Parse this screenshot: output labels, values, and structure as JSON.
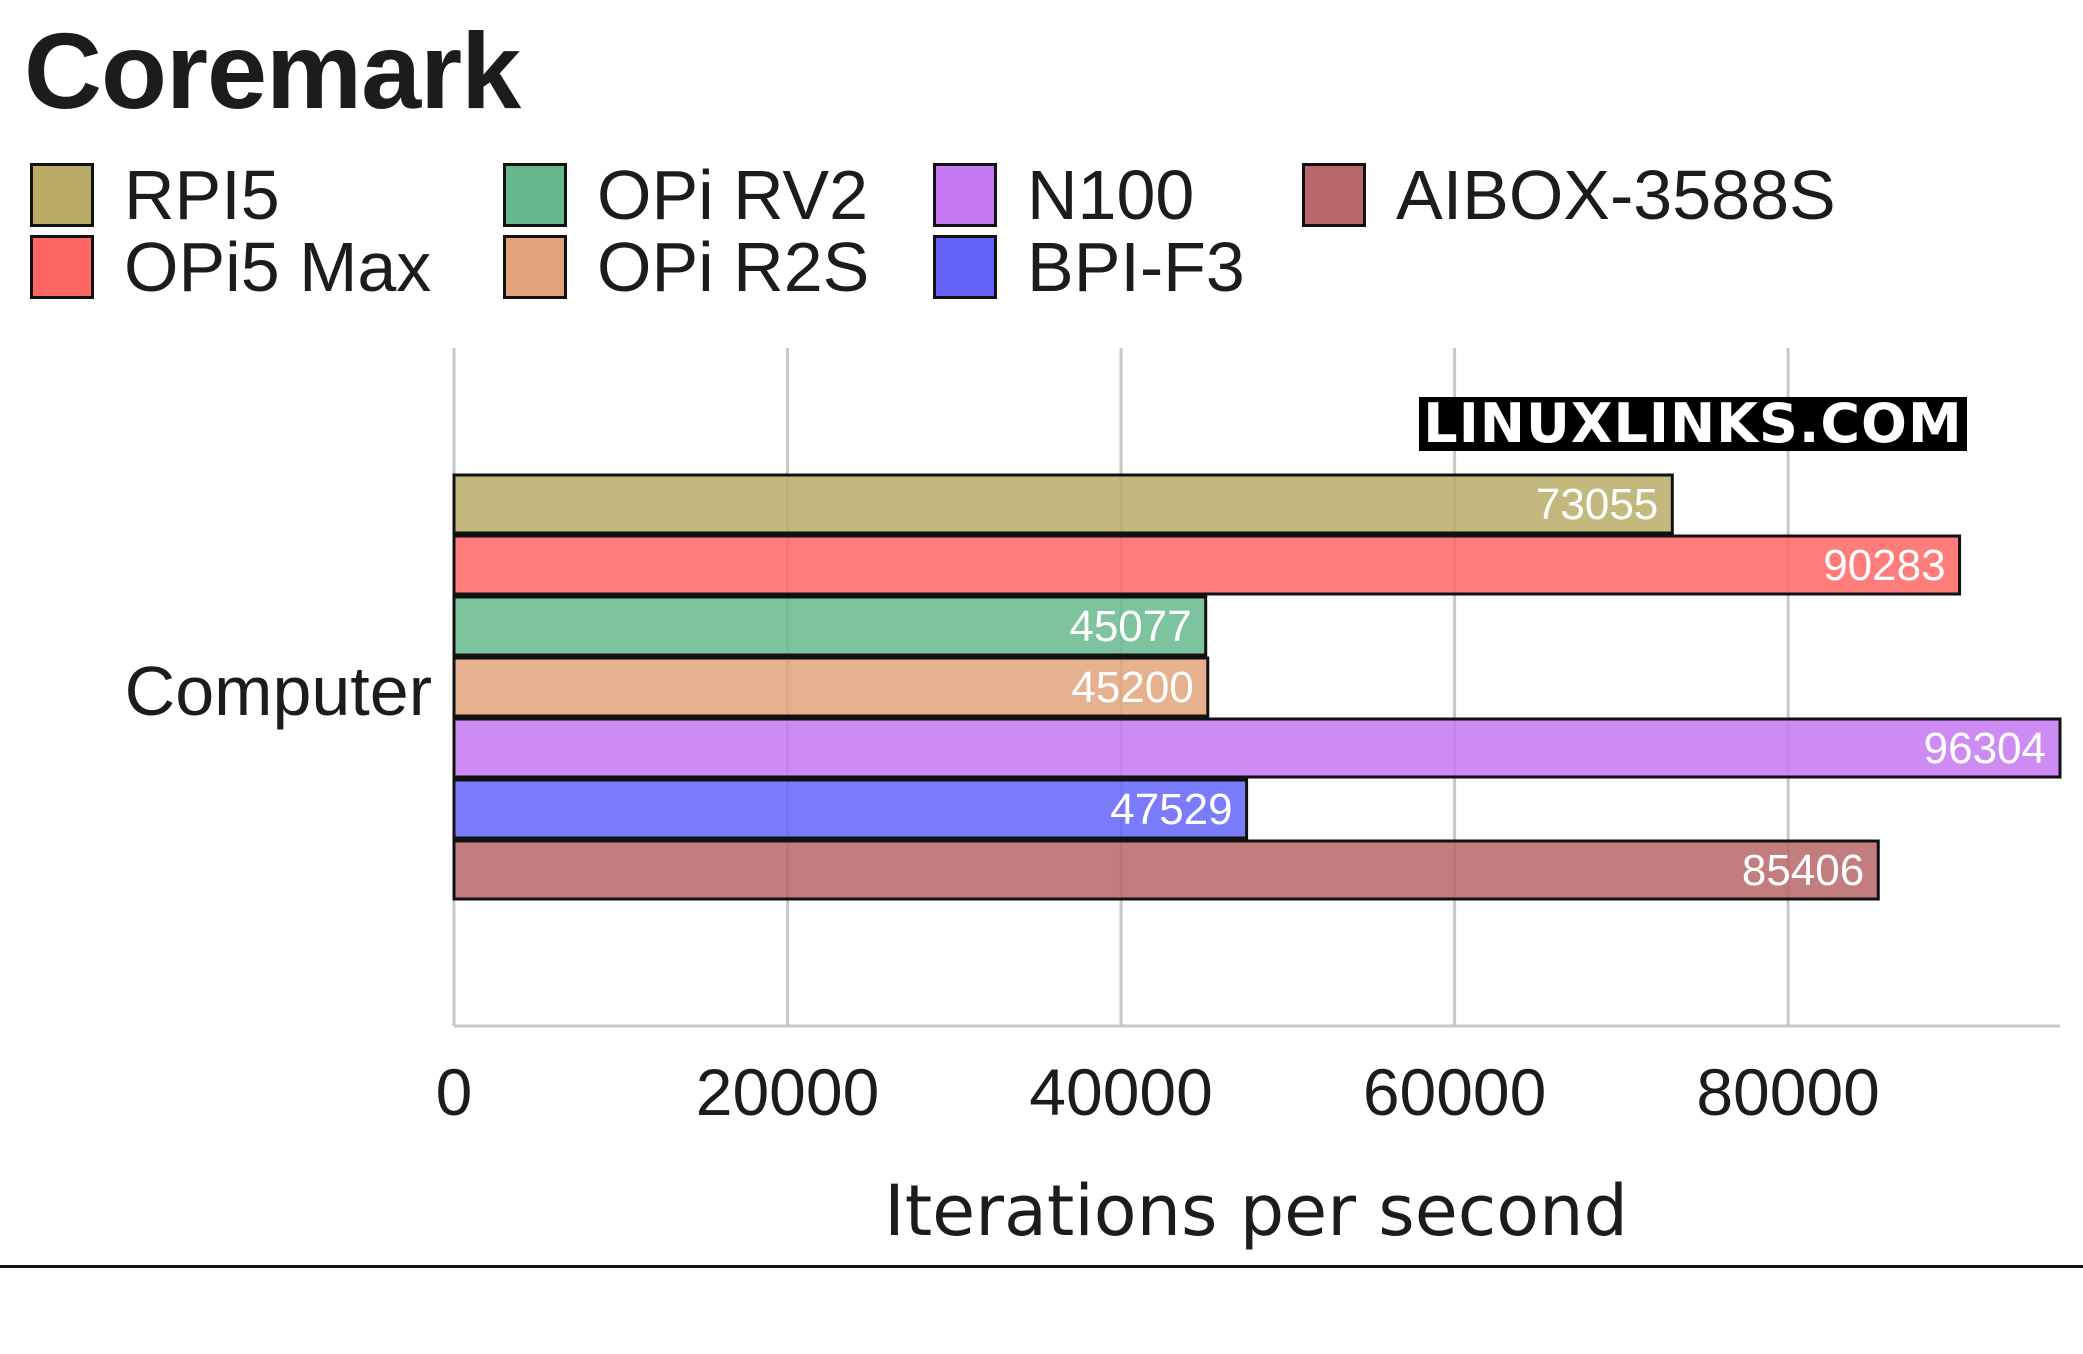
{
  "chart_data": {
    "type": "bar",
    "orientation": "horizontal",
    "title": "Coremark",
    "category": "Computer",
    "xlabel": "Iterations per second",
    "ylabel": "",
    "xlim": [
      0,
      96304
    ],
    "xticks": [
      "0",
      "20000",
      "40000",
      "60000",
      "80000"
    ],
    "grid": true,
    "legend_position": "top",
    "watermark": "LINUXLINKS.COM",
    "series": [
      {
        "name": "RPI5",
        "value": 73055,
        "label": "73055",
        "color": "#b8ab66"
      },
      {
        "name": "OPi5 Max",
        "value": 90283,
        "label": "90283",
        "color": "#fe6663"
      },
      {
        "name": "OPi RV2",
        "value": 45077,
        "label": "45077",
        "color": "#66b88c"
      },
      {
        "name": "OPi R2S",
        "value": 45200,
        "label": "45200",
        "color": "#e2a37a"
      },
      {
        "name": "N100",
        "value": 96304,
        "label": "96304",
        "color": "#c478f2"
      },
      {
        "name": "BPI-F3",
        "value": 47529,
        "label": "47529",
        "color": "#6464fd"
      },
      {
        "name": "AIBOX-3588S",
        "value": 85406,
        "label": "85406",
        "color": "#b76669"
      }
    ]
  }
}
